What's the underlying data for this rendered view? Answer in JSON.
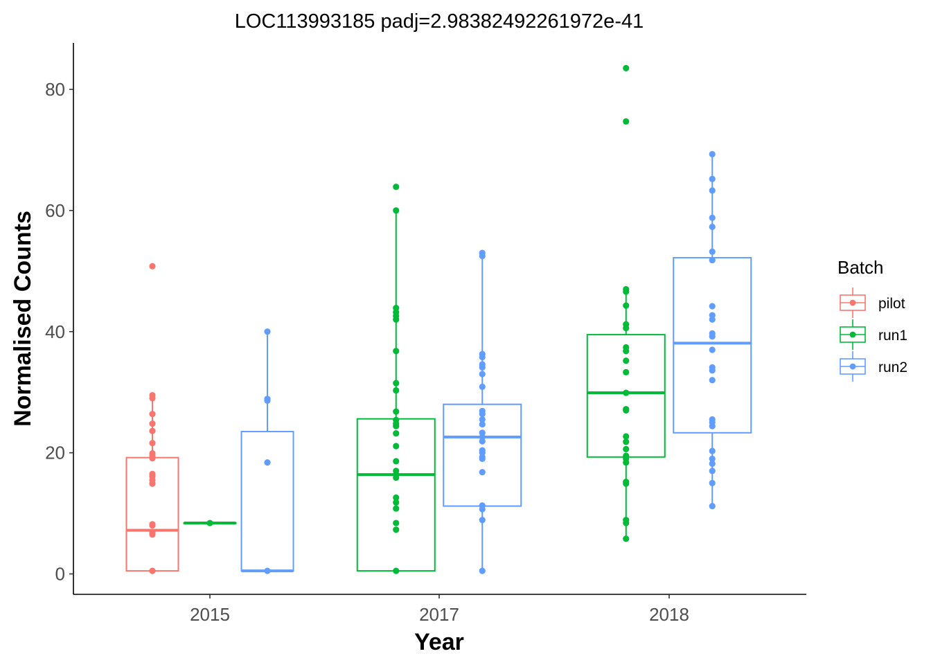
{
  "chart_data": {
    "type": "box",
    "title": "LOC113993185 padj=2.98382492261972e-41",
    "xlabel": "Year",
    "ylabel": "Normalised Counts",
    "categories": [
      "2015",
      "2017",
      "2018"
    ],
    "yticks": [
      0,
      20,
      40,
      60,
      80
    ],
    "ylim": [
      -3.5,
      87.5
    ],
    "grid": false,
    "legend": {
      "title": "Batch",
      "position": "right"
    },
    "series": [
      {
        "name": "pilot",
        "color": "#F8766D",
        "boxes": [
          {
            "category": "2015",
            "lower": 0.5,
            "q1": 0.5,
            "median": 7.2,
            "q3": 19.2,
            "upper": 29.5,
            "points": [
              50.8,
              29.5,
              29.0,
              26.4,
              24.8,
              23.6,
              21.6,
              19.9,
              19.5,
              19.1,
              16.5,
              16.1,
              15.5,
              14.9,
              8.2,
              8.0,
              6.9,
              6.5,
              0.5
            ]
          }
        ]
      },
      {
        "name": "run1",
        "color": "#00BA38",
        "boxes": [
          {
            "category": "2015",
            "lower": 8.4,
            "q1": 8.4,
            "median": 8.4,
            "q3": 8.4,
            "upper": 8.4,
            "points": [
              8.4
            ]
          },
          {
            "category": "2017",
            "lower": 0.5,
            "q1": 0.5,
            "median": 16.4,
            "q3": 25.6,
            "upper": 60.0,
            "points": [
              63.9,
              60.0,
              43.9,
              43.2,
              42.6,
              42.0,
              36.8,
              31.5,
              30.3,
              26.8,
              25.4,
              24.8,
              24.4,
              23.2,
              21.1,
              18.6,
              17.0,
              16.4,
              15.9,
              12.6,
              11.8,
              10.8,
              8.4,
              7.3,
              0.5
            ]
          },
          {
            "category": "2018",
            "lower": 5.8,
            "q1": 19.3,
            "median": 29.9,
            "q3": 39.5,
            "upper": 47.0,
            "points": [
              83.5,
              74.7,
              47.0,
              46.6,
              44.3,
              41.2,
              40.6,
              37.4,
              36.8,
              35.2,
              33.3,
              29.9,
              27.2,
              27.0,
              22.7,
              21.8,
              20.6,
              19.5,
              19.0,
              18.4,
              15.2,
              14.9,
              8.9,
              8.4,
              5.8
            ]
          }
        ]
      },
      {
        "name": "run2",
        "color": "#619CFF",
        "boxes": [
          {
            "category": "2015",
            "lower": 0.5,
            "q1": 0.5,
            "median": 0.5,
            "q3": 23.5,
            "upper": 40.0,
            "points": [
              40.0,
              28.9,
              28.6,
              18.4,
              0.5
            ]
          },
          {
            "category": "2017",
            "lower": 0.5,
            "q1": 11.2,
            "median": 22.6,
            "q3": 28.0,
            "upper": 53.0,
            "points": [
              53.0,
              52.5,
              36.3,
              35.8,
              34.6,
              34.1,
              33.0,
              30.9,
              26.9,
              26.4,
              25.5,
              24.7,
              23.3,
              22.6,
              21.9,
              20.4,
              20.0,
              19.3,
              19.0,
              16.8,
              11.3,
              10.7,
              8.9,
              0.5
            ]
          },
          {
            "category": "2018",
            "lower": 11.2,
            "q1": 23.3,
            "median": 38.1,
            "q3": 52.2,
            "upper": 69.3,
            "points": [
              69.3,
              65.2,
              63.3,
              58.8,
              57.3,
              53.2,
              51.8,
              44.2,
              42.7,
              42.0,
              39.7,
              39.2,
              37.0,
              34.1,
              33.6,
              32.0,
              25.5,
              25.0,
              24.4,
              20.3,
              19.0,
              18.2,
              17.0,
              15.0,
              11.2
            ]
          }
        ]
      }
    ]
  }
}
